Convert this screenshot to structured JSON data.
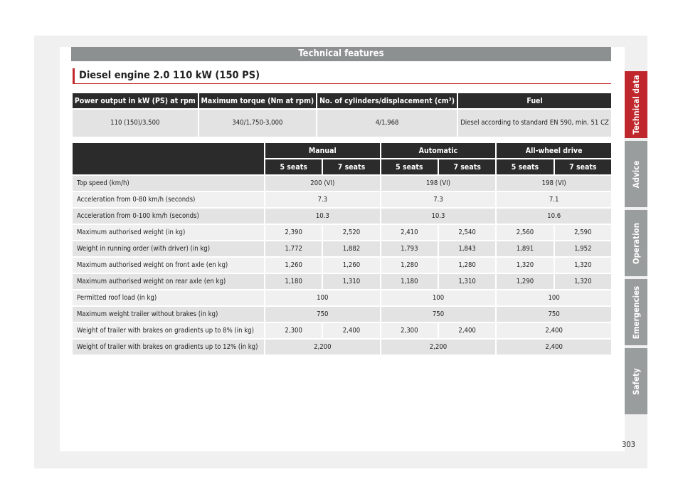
{
  "header": {
    "band": "Technical features",
    "title": "Diesel engine 2.0 110 kW (150 PS)"
  },
  "engine_table": {
    "headers": [
      "Power output in kW (PS) at rpm",
      "Maximum torque (Nm at rpm)",
      "No. of cylinders/displacement (cm³)",
      "Fuel"
    ],
    "values": [
      "110 (150)/3,500",
      "340/1,750-3,000",
      "4/1,968",
      "Diesel according to standard EN 590, min. 51 CZ"
    ]
  },
  "spec_table": {
    "groups": [
      "Manual",
      "Automatic",
      "All-wheel drive"
    ],
    "seats": [
      "5 seats",
      "7 seats",
      "5 seats",
      "7 seats",
      "5 seats",
      "7 seats"
    ],
    "rows": [
      {
        "label": "Top speed (km/h)",
        "cells": [
          "200 (VI)",
          "198 (VI)",
          "198 (VI)"
        ]
      },
      {
        "label": "Acceleration from 0-80 km/h (seconds)",
        "cells": [
          "7.3",
          "7.3",
          "7.1"
        ]
      },
      {
        "label": "Acceleration from 0-100 km/h (seconds)",
        "cells": [
          "10.3",
          "10.3",
          "10.6"
        ]
      },
      {
        "label": "Maximum authorised weight (in kg)",
        "cells": [
          "2,390",
          "2,520",
          "2,410",
          "2,540",
          "2,560",
          "2,590"
        ]
      },
      {
        "label": "Weight in running order (with driver) (in kg)",
        "cells": [
          "1,772",
          "1,882",
          "1,793",
          "1,843",
          "1,891",
          "1,952"
        ]
      },
      {
        "label": "Maximum authorised weight on front axle (en kg)",
        "cells": [
          "1,260",
          "1,260",
          "1,280",
          "1,280",
          "1,320",
          "1,320"
        ]
      },
      {
        "label": "Maximum authorised weight on rear axle (en kg)",
        "cells": [
          "1,180",
          "1,310",
          "1,180",
          "1,310",
          "1,290",
          "1,320"
        ]
      },
      {
        "label": "Permitted roof load (in kg)",
        "cells": [
          "100",
          "100",
          "100"
        ]
      },
      {
        "label": "Maximum weight trailer without brakes (in kg)",
        "cells": [
          "750",
          "750",
          "750"
        ]
      },
      {
        "label": "Weight of trailer with brakes on gradients up to 8% (in kg)",
        "cells": [
          "2,300",
          "2,400",
          "2,300",
          "2,400",
          "2,400"
        ]
      },
      {
        "label": "Weight of trailer with brakes on gradients up to 12% (in kg)",
        "cells": [
          "2,200",
          "2,200",
          "2,400"
        ]
      }
    ]
  },
  "side_tabs": [
    "Technical data",
    "Advice",
    "Operation",
    "Emergencies",
    "Safety"
  ],
  "page_number": "303"
}
